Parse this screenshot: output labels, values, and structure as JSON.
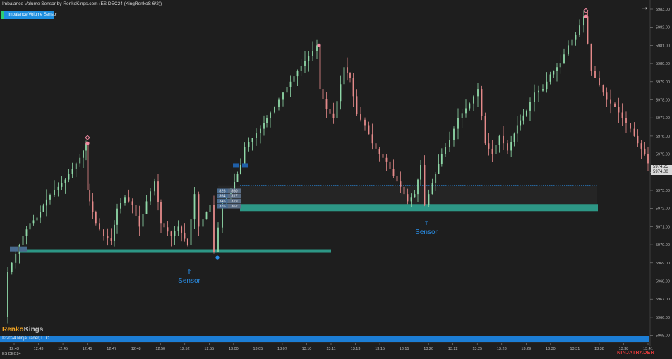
{
  "window": {
    "title": "Imbalance Volume Sensor by RenkoKings.com (ES DEC24 (KingRenkoS 6/2))",
    "indicator_label": "Imbalance Volume Sensor",
    "nav_arrow": "→",
    "instrument": "ES DEC24",
    "copyright": "© 2024 NinjaTrader, LLC",
    "brand_part1": "Renko",
    "brand_part2": "Kings",
    "platform_logo": "NINJATRADER"
  },
  "price_tag": {
    "line1": "5974.25",
    "line2": "5974.00"
  },
  "colors": {
    "background": "#1e1e1e",
    "up_candle": "#8fd9a8",
    "down_candle": "#e58a8a",
    "zone_teal": "#2fa491",
    "sensor_blue": "#2a8de4",
    "marker_pink": "#f08aa0",
    "accent_blue": "#1c7ed6"
  },
  "chart_data": {
    "type": "candlestick",
    "y_axis_ticks": [
      "5983.00",
      "5982.00",
      "5981.00",
      "5980.00",
      "5979.00",
      "5978.00",
      "5977.00",
      "5976.00",
      "5975.00",
      "5974.00",
      "5973.00",
      "5972.00",
      "5971.00",
      "5970.00",
      "5969.00",
      "5968.00",
      "5967.00",
      "5966.00",
      "5965.00"
    ],
    "ylim": [
      5964.8,
      5983.1
    ],
    "x_axis_ticks": [
      "12:43",
      "12:43",
      "12:45",
      "12:45",
      "12:47",
      "12:48",
      "12:50",
      "12:52",
      "12:55",
      "13:00",
      "13:05",
      "13:07",
      "13:10",
      "13:11",
      "13:13",
      "13:15",
      "13:15",
      "13:20",
      "13:22",
      "13:25",
      "13:28",
      "13:29",
      "13:30",
      "13:31",
      "13:38",
      "13:38",
      "13:41"
    ],
    "annotations": [
      {
        "type": "sensor",
        "label": "Sensor",
        "arrow": "⇑"
      },
      {
        "type": "sensor",
        "label": "Sensor",
        "arrow": "⇑"
      }
    ],
    "imbalance_cells": [
      [
        "826",
        "860"
      ],
      [
        "364",
        "317"
      ],
      [
        "345",
        "319"
      ],
      [
        "376",
        "362"
      ]
    ]
  }
}
